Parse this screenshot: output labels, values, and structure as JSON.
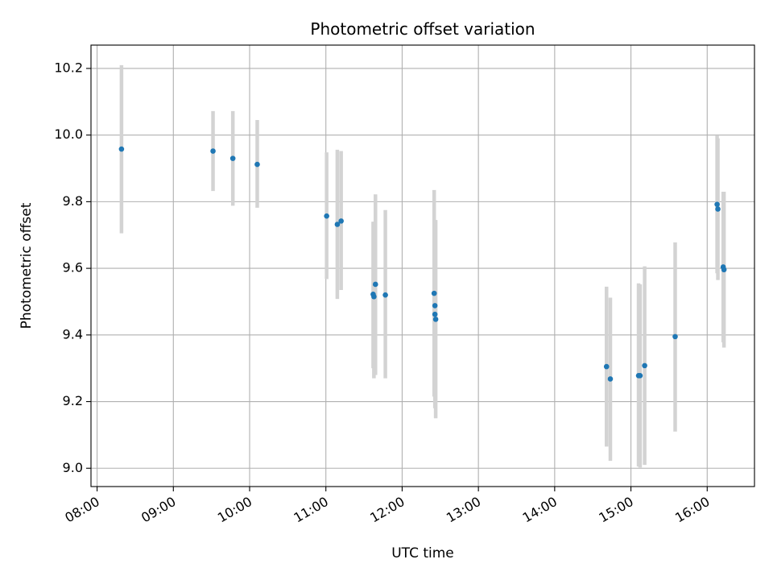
{
  "chart_data": {
    "type": "scatter",
    "title": "Photometric offset variation",
    "xlabel": "UTC time",
    "ylabel": "Photometric offset",
    "x_unit": "hours",
    "xlim": [
      7.92,
      16.62
    ],
    "ylim": [
      8.945,
      10.27
    ],
    "grid": true,
    "x_ticks": [
      {
        "value": 8,
        "label": "08:00"
      },
      {
        "value": 9,
        "label": "09:00"
      },
      {
        "value": 10,
        "label": "10:00"
      },
      {
        "value": 11,
        "label": "11:00"
      },
      {
        "value": 12,
        "label": "12:00"
      },
      {
        "value": 13,
        "label": "13:00"
      },
      {
        "value": 14,
        "label": "14:00"
      },
      {
        "value": 15,
        "label": "15:00"
      },
      {
        "value": 16,
        "label": "16:00"
      }
    ],
    "y_ticks": [
      {
        "value": 9.0,
        "label": "9.0"
      },
      {
        "value": 9.2,
        "label": "9.2"
      },
      {
        "value": 9.4,
        "label": "9.4"
      },
      {
        "value": 9.6,
        "label": "9.6"
      },
      {
        "value": 9.8,
        "label": "9.8"
      },
      {
        "value": 10.0,
        "label": "10.0"
      },
      {
        "value": 10.2,
        "label": "10.2"
      }
    ],
    "colors": {
      "point": "#1f77b4",
      "errorbar": "#d3d3d3",
      "grid": "#b0b0b0",
      "axis": "#000000"
    },
    "points": [
      {
        "x": 8.32,
        "y": 9.958,
        "ylow": 9.705,
        "yhigh": 10.21
      },
      {
        "x": 9.52,
        "y": 9.952,
        "ylow": 9.832,
        "yhigh": 10.072
      },
      {
        "x": 9.78,
        "y": 9.93,
        "ylow": 9.788,
        "yhigh": 10.072
      },
      {
        "x": 10.1,
        "y": 9.912,
        "ylow": 9.782,
        "yhigh": 10.045
      },
      {
        "x": 11.01,
        "y": 9.757,
        "ylow": 9.568,
        "yhigh": 9.948
      },
      {
        "x": 11.15,
        "y": 9.732,
        "ylow": 9.508,
        "yhigh": 9.956
      },
      {
        "x": 11.2,
        "y": 9.742,
        "ylow": 9.535,
        "yhigh": 9.952
      },
      {
        "x": 11.62,
        "y": 9.522,
        "ylow": 9.3,
        "yhigh": 9.74
      },
      {
        "x": 11.63,
        "y": 9.515,
        "ylow": 9.27,
        "yhigh": 9.74
      },
      {
        "x": 11.65,
        "y": 9.552,
        "ylow": 9.28,
        "yhigh": 9.822
      },
      {
        "x": 11.78,
        "y": 9.52,
        "ylow": 9.27,
        "yhigh": 9.775
      },
      {
        "x": 12.42,
        "y": 9.525,
        "ylow": 9.215,
        "yhigh": 9.835
      },
      {
        "x": 12.43,
        "y": 9.488,
        "ylow": 9.235,
        "yhigh": 9.74
      },
      {
        "x": 12.43,
        "y": 9.462,
        "ylow": 9.18,
        "yhigh": 9.745
      },
      {
        "x": 12.44,
        "y": 9.447,
        "ylow": 9.15,
        "yhigh": 9.745
      },
      {
        "x": 14.68,
        "y": 9.305,
        "ylow": 9.065,
        "yhigh": 9.545
      },
      {
        "x": 14.73,
        "y": 9.268,
        "ylow": 9.022,
        "yhigh": 9.512
      },
      {
        "x": 15.1,
        "y": 9.278,
        "ylow": 9.005,
        "yhigh": 9.555
      },
      {
        "x": 15.12,
        "y": 9.278,
        "ylow": 9.002,
        "yhigh": 9.552
      },
      {
        "x": 15.18,
        "y": 9.308,
        "ylow": 9.01,
        "yhigh": 9.606
      },
      {
        "x": 15.58,
        "y": 9.395,
        "ylow": 9.11,
        "yhigh": 9.678
      },
      {
        "x": 16.13,
        "y": 9.792,
        "ylow": 9.585,
        "yhigh": 9.998
      },
      {
        "x": 16.14,
        "y": 9.778,
        "ylow": 9.565,
        "yhigh": 9.99
      },
      {
        "x": 16.21,
        "y": 9.604,
        "ylow": 9.378,
        "yhigh": 9.83
      },
      {
        "x": 16.22,
        "y": 9.596,
        "ylow": 9.362,
        "yhigh": 9.83
      }
    ]
  }
}
